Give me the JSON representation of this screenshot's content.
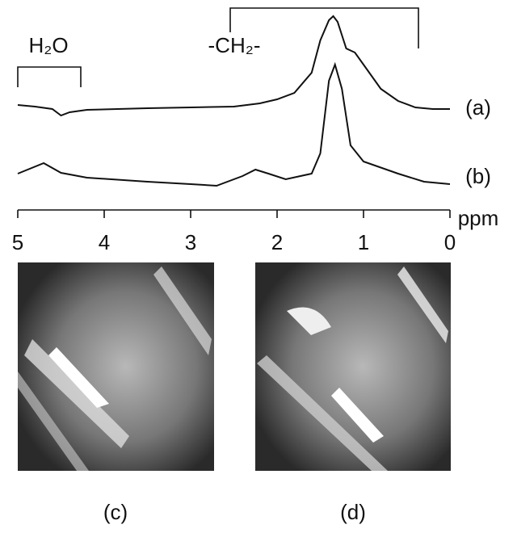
{
  "chart_data": {
    "type": "line",
    "annotations": [
      "H₂O",
      "-CH₂-"
    ],
    "xlabel": "ppm",
    "xlim": [
      5,
      0
    ],
    "xticks": [
      5,
      4,
      3,
      2,
      1,
      0
    ],
    "series": [
      {
        "name": "(a)",
        "color": "#111111",
        "x": [
          5,
          4.8,
          4.6,
          4.5,
          4.4,
          4.2,
          3.5,
          3,
          2.5,
          2.2,
          2.0,
          1.8,
          1.6,
          1.5,
          1.4,
          1.35,
          1.3,
          1.2,
          1.1,
          1.0,
          0.8,
          0.6,
          0.4,
          0.2,
          0
        ],
        "values": [
          15,
          13,
          10,
          2,
          6,
          9,
          11,
          12,
          13,
          17,
          22,
          30,
          55,
          95,
          120,
          125,
          118,
          85,
          80,
          65,
          35,
          20,
          12,
          10,
          10
        ]
      },
      {
        "name": "(b)",
        "color": "#111111",
        "x": [
          5,
          4.7,
          4.5,
          4.2,
          3.5,
          3,
          2.7,
          2.4,
          2.25,
          2.1,
          1.9,
          1.6,
          1.5,
          1.4,
          1.33,
          1.25,
          1.15,
          1.0,
          0.6,
          0.3,
          0
        ],
        "values": [
          15,
          28,
          16,
          10,
          5,
          2,
          0,
          12,
          20,
          15,
          8,
          15,
          40,
          130,
          150,
          120,
          50,
          30,
          15,
          5,
          2
        ]
      }
    ],
    "panels": [
      "(c)",
      "(d)"
    ]
  }
}
